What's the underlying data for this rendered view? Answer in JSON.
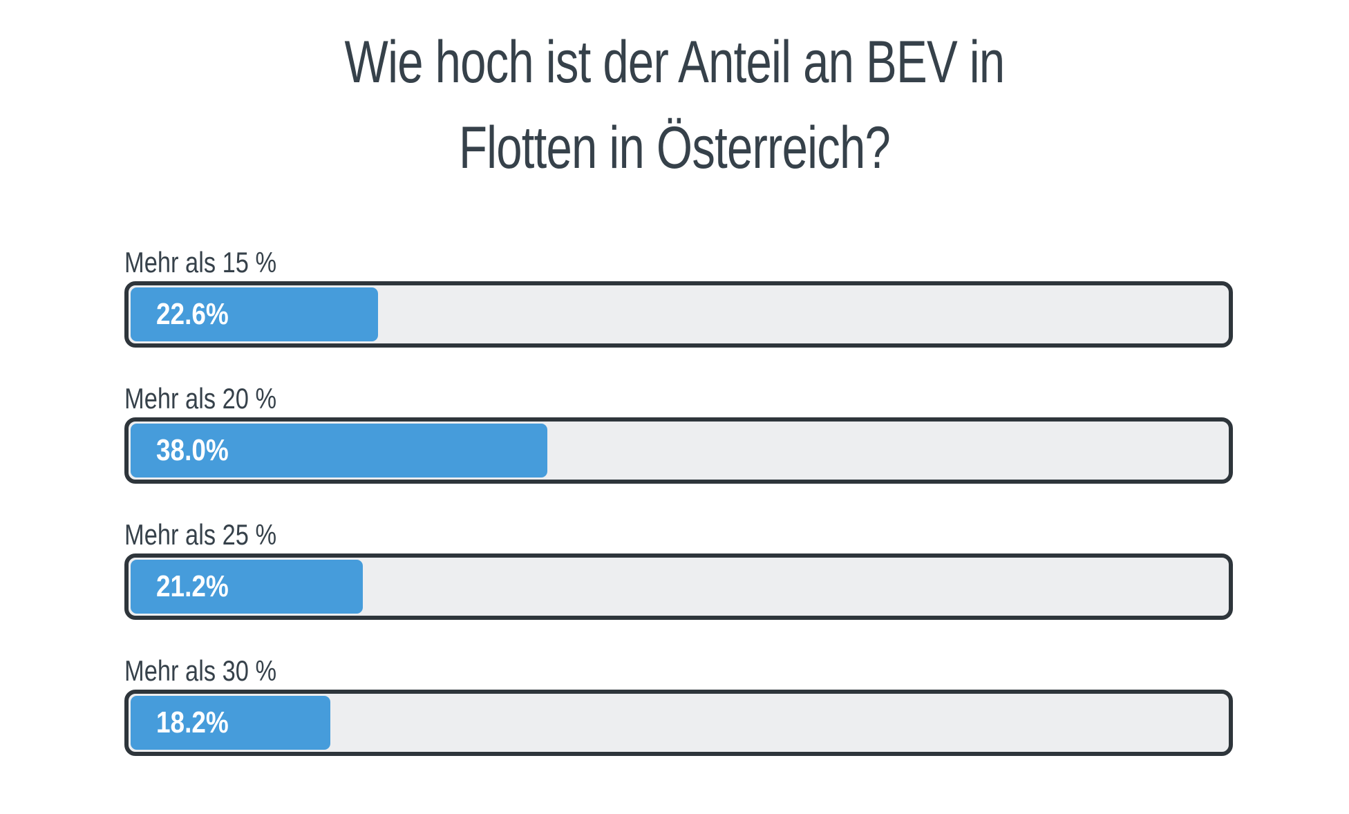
{
  "colors": {
    "text": "#36414a",
    "bar_fill": "#469cdb",
    "track": "#edeef0",
    "border": "#2e353b",
    "value_text": "#ffffff"
  },
  "chart_data": {
    "type": "bar",
    "orientation": "horizontal",
    "title": "Wie hoch ist der Anteil an BEV in Flotten in Österreich?",
    "categories": [
      "Mehr als 15 %",
      "Mehr als 20 %",
      "Mehr als 25 %",
      "Mehr als 30 %"
    ],
    "values": [
      22.6,
      38.0,
      21.2,
      18.2
    ],
    "value_labels": [
      "22.6%",
      "38.0%",
      "21.2%",
      "18.2%"
    ],
    "unit": "%",
    "xlim": [
      0,
      100
    ],
    "grid": false,
    "legend": "none"
  }
}
